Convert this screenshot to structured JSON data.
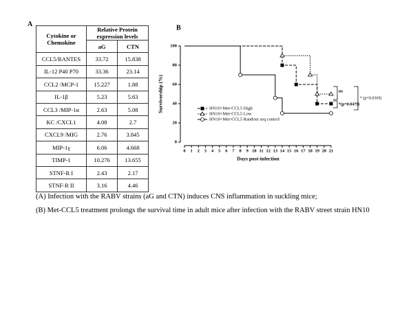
{
  "panel_a": {
    "label": "A",
    "table": {
      "header": {
        "col0": "Cytokine or Chemokine",
        "group": "Relative Protein expression levels",
        "col1": "aG",
        "col2": "CTN"
      },
      "rows": [
        [
          "CCL5/RANTES",
          "33.72",
          "15.838"
        ],
        [
          "IL-12 P40 P70",
          "33.36",
          "23.14"
        ],
        [
          "CCL2 /MCP-1",
          "15.227",
          "1.88"
        ],
        [
          "IL-1β",
          "5.23",
          "5.63"
        ],
        [
          "CCL3 /MIP-1α",
          "2.63",
          "5.08"
        ],
        [
          "KC /CXCL1",
          "4.08",
          "2.7"
        ],
        [
          "CXCL9 /MIG",
          "2.76",
          "3.845"
        ],
        [
          "MIP-1γ",
          "6.06",
          "4.668"
        ],
        [
          "TIMP-1",
          "10.276",
          "13.655"
        ],
        [
          "STNF-R I",
          "2.43",
          "2.17"
        ],
        [
          "STNF-R II",
          "3.16",
          "4.46"
        ]
      ]
    }
  },
  "chart_data": {
    "type": "survival",
    "label": "B",
    "x_label": "Days post-infection",
    "y_label": "Survivorship (%)",
    "xlim": [
      0,
      21
    ],
    "xticks": [
      0,
      1,
      2,
      3,
      4,
      5,
      6,
      7,
      8,
      9,
      10,
      11,
      12,
      13,
      14,
      15,
      16,
      17,
      18,
      19,
      20,
      21
    ],
    "ylim": [
      0,
      100
    ],
    "yticks": [
      0,
      20,
      40,
      60,
      80,
      100
    ],
    "series": [
      {
        "name": "HN10+Met-CCL5 High",
        "color": "#000000",
        "style": "dashed",
        "marker": "square",
        "x": [
          0,
          14,
          16,
          19,
          21
        ],
        "values": [
          100,
          80,
          60,
          40,
          40
        ]
      },
      {
        "name": "HN10+Met-CCL5 Low",
        "color": "#000000",
        "style": "dotted",
        "marker": "triangle",
        "x": [
          0,
          14,
          18,
          19,
          21
        ],
        "values": [
          100,
          90,
          70,
          50,
          50
        ]
      },
      {
        "name": "HN10+Met-CCL5 Random seq control",
        "color": "#000000",
        "style": "solid",
        "marker": "circle",
        "x": [
          0,
          8,
          13,
          14,
          21
        ],
        "values": [
          100,
          70,
          46,
          30,
          30
        ]
      }
    ],
    "annotations": [
      "ns",
      "* (p=0.0369)",
      "*(p=0.0479)"
    ]
  },
  "captions": [
    "(A) Infection with the RABV strains (aG and CTN) induces CNS inflammation in suckling mice;",
    "(B) Met-CCL5 treatment prolongs the survival time in adult mice after infection with the RABV street strain HN10"
  ]
}
